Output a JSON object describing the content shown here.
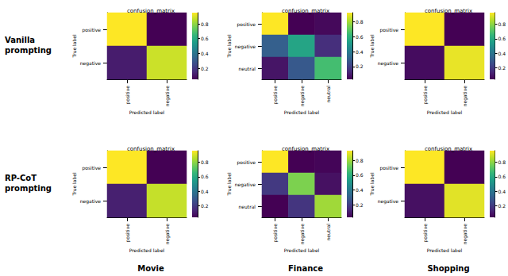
{
  "figure": {
    "row_labels": [
      "Vanilla prompting",
      "RP-CoT prompting"
    ],
    "column_labels": [
      "Movie",
      "Finance",
      "Shopping"
    ]
  },
  "chart_data": [
    {
      "type": "heatmap",
      "title": "confusion_matrix",
      "x_label": "Predicted label",
      "y_label": "True label",
      "categories": [
        "positive",
        "negative"
      ],
      "cells": [
        [
          0.95,
          0.05
        ],
        [
          0.12,
          0.88
        ]
      ],
      "colorbar": {
        "range": [
          0.05,
          0.95
        ],
        "ticks": [
          0.2,
          0.4,
          0.6,
          0.8
        ]
      }
    },
    {
      "type": "heatmap",
      "title": "confusion_matrix",
      "x_label": "Predicted label",
      "y_label": "True label",
      "categories": [
        "positive",
        "negative",
        "neutral"
      ],
      "cells": [
        [
          0.92,
          0.03,
          0.05
        ],
        [
          0.3,
          0.55,
          0.15
        ],
        [
          0.08,
          0.28,
          0.65
        ]
      ],
      "colorbar": {
        "range": [
          0.03,
          0.92
        ],
        "ticks": [
          0.2,
          0.4,
          0.6,
          0.8
        ]
      }
    },
    {
      "type": "heatmap",
      "title": "confusion_matrix",
      "x_label": "Predicted label",
      "y_label": "True label",
      "categories": [
        "positive",
        "negative"
      ],
      "cells": [
        [
          0.96,
          0.04
        ],
        [
          0.07,
          0.93
        ]
      ],
      "colorbar": {
        "range": [
          0.04,
          0.96
        ],
        "ticks": [
          0.2,
          0.4,
          0.6,
          0.8
        ]
      }
    },
    {
      "type": "heatmap",
      "title": "confusion_matrix",
      "x_label": "Predicted label",
      "y_label": "True label",
      "categories": [
        "positive",
        "negative"
      ],
      "cells": [
        [
          0.96,
          0.04
        ],
        [
          0.12,
          0.88
        ]
      ],
      "colorbar": {
        "range": [
          0.04,
          0.96
        ],
        "ticks": [
          0.2,
          0.4,
          0.6,
          0.8
        ]
      }
    },
    {
      "type": "heatmap",
      "title": "confusion_matrix",
      "x_label": "Predicted label",
      "y_label": "True label",
      "categories": [
        "positive",
        "negative",
        "neutral"
      ],
      "cells": [
        [
          0.93,
          0.03,
          0.04
        ],
        [
          0.18,
          0.75,
          0.07
        ],
        [
          0.03,
          0.17,
          0.8
        ]
      ],
      "colorbar": {
        "range": [
          0.03,
          0.93
        ],
        "ticks": [
          0.2,
          0.4,
          0.6,
          0.8
        ]
      }
    },
    {
      "type": "heatmap",
      "title": "confusion_matrix",
      "x_label": "Predicted label",
      "y_label": "True label",
      "categories": [
        "positive",
        "negative"
      ],
      "cells": [
        [
          0.96,
          0.04
        ],
        [
          0.08,
          0.92
        ]
      ],
      "colorbar": {
        "range": [
          0.04,
          0.96
        ],
        "ticks": [
          0.2,
          0.4,
          0.6,
          0.8
        ]
      }
    }
  ]
}
